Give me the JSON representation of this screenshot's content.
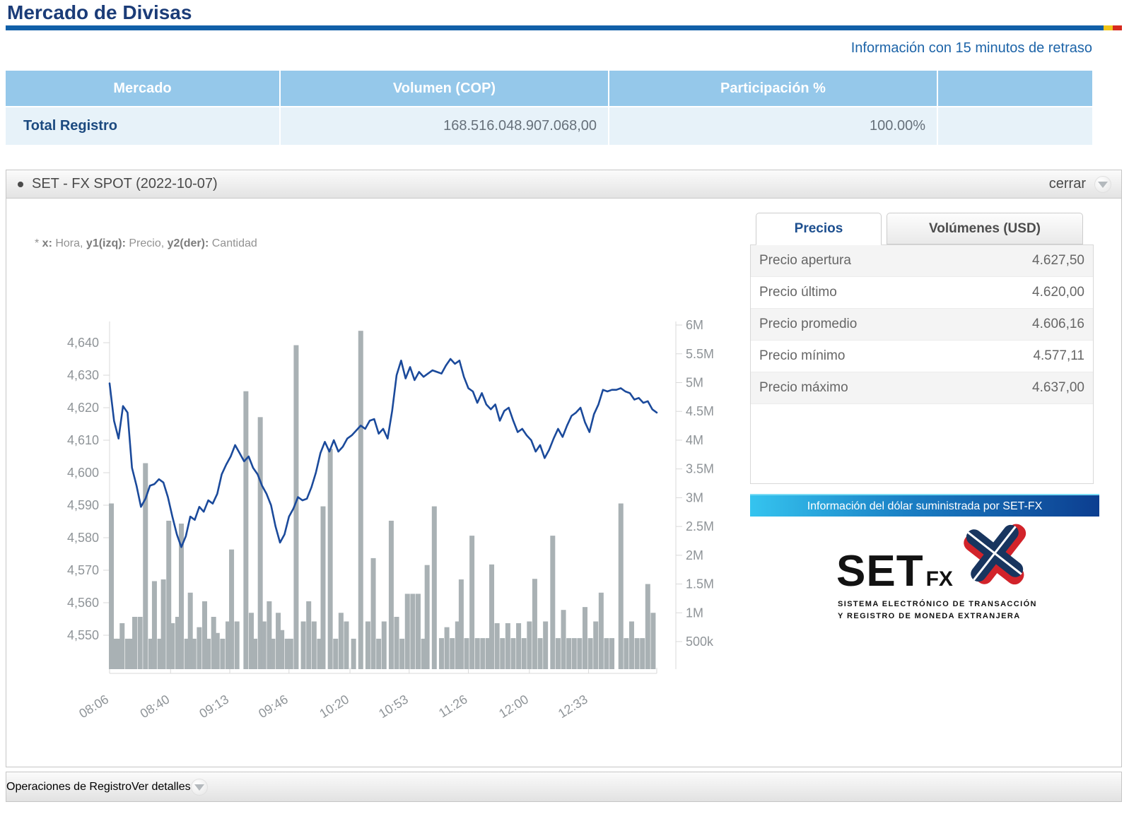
{
  "page": {
    "title": "Mercado de Divisas",
    "delay_notice": "Información con 15 minutos de retraso"
  },
  "summary_table": {
    "headers": [
      "Mercado",
      "Volumen (COP)",
      "Participación %",
      ""
    ],
    "row": {
      "market": "Total Registro",
      "volume": "168.516.048.907.068,00",
      "participation": "100.00%"
    }
  },
  "panel": {
    "title": "SET - FX SPOT (2022-10-07)",
    "collapse_label": "cerrar",
    "legend_segments": [
      {
        "text": "* ",
        "bold": false
      },
      {
        "text": "x:",
        "bold": true
      },
      {
        "text": " Hora, ",
        "bold": false
      },
      {
        "text": "y1(izq):",
        "bold": true
      },
      {
        "text": " Precio, ",
        "bold": false
      },
      {
        "text": "y2(der):",
        "bold": true
      },
      {
        "text": " Cantidad",
        "bold": false
      }
    ]
  },
  "price_box": {
    "tabs": [
      "Precios",
      "Volúmenes (USD)"
    ],
    "active_tab": "Precios",
    "rows": [
      {
        "label": "Precio apertura",
        "value": "4.627,50"
      },
      {
        "label": "Precio último",
        "value": "4.620,00"
      },
      {
        "label": "Precio promedio",
        "value": "4.606,16"
      },
      {
        "label": "Precio mínimo",
        "value": "4.577,11"
      },
      {
        "label": "Precio máximo",
        "value": "4.637,00"
      }
    ]
  },
  "banner": {
    "text": "Información del dólar suministrada por SET-FX"
  },
  "logo": {
    "brand": "SET",
    "brand_sub": "FX",
    "line1": "SISTEMA ELECTRÓNICO DE TRANSACCIÓN",
    "line2": "Y REGISTRO DE MONEDA EXTRANJERA"
  },
  "footer": {
    "title": "Operaciones de Registro",
    "action": "Ver detalles"
  },
  "chart_data": {
    "type": "line+bar",
    "title": "SET - FX SPOT (2022-10-07)",
    "xlabel": "Hora",
    "ylabel_left": "Precio",
    "ylabel_right": "Cantidad",
    "colors": {
      "line": "#1b4a9b",
      "bars": "#a9b1b4",
      "axis": "#d9d9d9",
      "tick_text": "#8f9498"
    },
    "x_axis": {
      "tick_labels": [
        "08:06",
        "08:40",
        "09:13",
        "09:46",
        "10:20",
        "10:53",
        "11:26",
        "12:00",
        "12:33"
      ],
      "tick_minutes": [
        0,
        34,
        67,
        100,
        134,
        167,
        200,
        234,
        267
      ],
      "total_minutes": 305
    },
    "y_left": {
      "tick_values": [
        4550,
        4560,
        4570,
        4580,
        4590,
        4600,
        4610,
        4620,
        4630,
        4640
      ],
      "tick_labels": [
        "4,550",
        "4,560",
        "4,570",
        "4,580",
        "4,590",
        "4,600",
        "4,610",
        "4,620",
        "4,630",
        "4,640"
      ]
    },
    "y_right": {
      "tick_values": [
        500000,
        1000000,
        1500000,
        2000000,
        2500000,
        3000000,
        3500000,
        4000000,
        4500000,
        5000000,
        5500000,
        6000000
      ],
      "tick_labels": [
        "500k",
        "1M",
        "1.5M",
        "2M",
        "2.5M",
        "3M",
        "3.5M",
        "4M",
        "4.5M",
        "5M",
        "5.5M",
        "6M"
      ]
    },
    "price_line": {
      "name": "Precio",
      "start_time": "08:06",
      "step_minutes": 2.5,
      "values": [
        4627.5,
        4616,
        4610.5,
        4620.5,
        4618.5,
        4601.5,
        4596,
        4589.5,
        4592,
        4596,
        4596.5,
        4598,
        4597,
        4592.5,
        4586.5,
        4581,
        4577.1,
        4580.5,
        4586.5,
        4585.5,
        4589.5,
        4588,
        4591.5,
        4590.5,
        4593.5,
        4599.5,
        4602.5,
        4605,
        4608.5,
        4606,
        4603.5,
        4605,
        4601.5,
        4599.5,
        4596,
        4593.5,
        4590,
        4583.5,
        4578.5,
        4581,
        4586.5,
        4589,
        4592.5,
        4591.5,
        4592,
        4595.5,
        4600,
        4606,
        4609.5,
        4606.5,
        4610,
        4606.5,
        4608,
        4610.5,
        4611.5,
        4613,
        4614.5,
        4613.5,
        4616,
        4616.5,
        4612,
        4613.5,
        4610.5,
        4619,
        4630,
        4634.5,
        4629,
        4632.5,
        4628.5,
        4631,
        4629.5,
        4630.5,
        4631.5,
        4631,
        4630.5,
        4633,
        4635,
        4633.5,
        4634.5,
        4629.5,
        4626,
        4625,
        4621.5,
        4624.5,
        4621,
        4619.5,
        4621,
        4616,
        4619,
        4620,
        4616,
        4612.5,
        4613.5,
        4611.5,
        4610,
        4606.5,
        4608.5,
        4604.5,
        4607,
        4610.5,
        4613.5,
        4611,
        4614.5,
        4617.5,
        4618.5,
        4620,
        4615.5,
        4612.5,
        4618,
        4621,
        4625.5,
        4625,
        4625.5,
        4625.5,
        4626,
        4625,
        4624.5,
        4622.5,
        4623,
        4621.5,
        4622,
        4619.5,
        4618.5
      ]
    },
    "volume_bars": {
      "name": "Cantidad",
      "points": [
        [
          1,
          2900000
        ],
        [
          3,
          550000
        ],
        [
          5,
          550000
        ],
        [
          7,
          820000
        ],
        [
          10,
          550000
        ],
        [
          12,
          550000
        ],
        [
          14,
          930000
        ],
        [
          17,
          930000
        ],
        [
          20,
          3600000
        ],
        [
          23,
          550000
        ],
        [
          25,
          1550000
        ],
        [
          28,
          550000
        ],
        [
          30,
          1580000
        ],
        [
          33,
          2600000
        ],
        [
          35,
          820000
        ],
        [
          38,
          930000
        ],
        [
          40,
          2550000
        ],
        [
          43,
          550000
        ],
        [
          45,
          1350000
        ],
        [
          47,
          550000
        ],
        [
          50,
          750000
        ],
        [
          53,
          1200000
        ],
        [
          55,
          550000
        ],
        [
          58,
          930000
        ],
        [
          60,
          650000
        ],
        [
          63,
          550000
        ],
        [
          66,
          850000
        ],
        [
          68,
          2100000
        ],
        [
          71,
          850000
        ],
        [
          76,
          4850000
        ],
        [
          79,
          1000000
        ],
        [
          81,
          550000
        ],
        [
          84,
          4400000
        ],
        [
          86,
          850000
        ],
        [
          89,
          1200000
        ],
        [
          91,
          550000
        ],
        [
          94,
          1000000
        ],
        [
          96,
          700000
        ],
        [
          99,
          550000
        ],
        [
          101,
          550000
        ],
        [
          104,
          5650000
        ],
        [
          108,
          850000
        ],
        [
          111,
          1200000
        ],
        [
          114,
          850000
        ],
        [
          117,
          550000
        ],
        [
          119,
          2850000
        ],
        [
          123,
          3850000
        ],
        [
          126,
          550000
        ],
        [
          129,
          1000000
        ],
        [
          132,
          850000
        ],
        [
          136,
          550000
        ],
        [
          140,
          5900000
        ],
        [
          144,
          850000
        ],
        [
          147,
          1950000
        ],
        [
          150,
          550000
        ],
        [
          153,
          850000
        ],
        [
          157,
          2600000
        ],
        [
          160,
          930000
        ],
        [
          163,
          550000
        ],
        [
          166,
          1330000
        ],
        [
          169,
          1330000
        ],
        [
          172,
          1330000
        ],
        [
          175,
          550000
        ],
        [
          177,
          1830000
        ],
        [
          181,
          2850000
        ],
        [
          185,
          560000
        ],
        [
          188,
          750000
        ],
        [
          191,
          560000
        ],
        [
          194,
          850000
        ],
        [
          196,
          1580000
        ],
        [
          199,
          560000
        ],
        [
          202,
          2340000
        ],
        [
          205,
          560000
        ],
        [
          208,
          560000
        ],
        [
          211,
          560000
        ],
        [
          213,
          1840000
        ],
        [
          216,
          820000
        ],
        [
          219,
          560000
        ],
        [
          222,
          820000
        ],
        [
          225,
          560000
        ],
        [
          228,
          820000
        ],
        [
          231,
          560000
        ],
        [
          234,
          850000
        ],
        [
          237,
          1590000
        ],
        [
          240,
          560000
        ],
        [
          243,
          850000
        ],
        [
          247,
          2340000
        ],
        [
          250,
          560000
        ],
        [
          253,
          1050000
        ],
        [
          256,
          560000
        ],
        [
          259,
          560000
        ],
        [
          262,
          560000
        ],
        [
          265,
          1100000
        ],
        [
          268,
          560000
        ],
        [
          271,
          850000
        ],
        [
          274,
          1350000
        ],
        [
          277,
          560000
        ],
        [
          280,
          560000
        ],
        [
          285,
          2900000
        ],
        [
          288,
          560000
        ],
        [
          291,
          850000
        ],
        [
          294,
          560000
        ],
        [
          297,
          560000
        ],
        [
          300,
          1500000
        ],
        [
          303,
          1000000
        ]
      ]
    }
  }
}
